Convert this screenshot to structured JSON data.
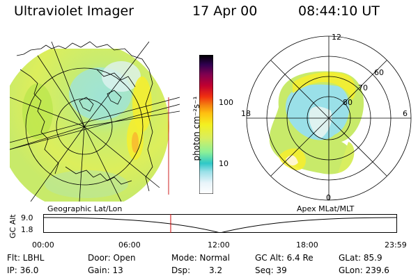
{
  "header": {
    "instrument": "Ultraviolet Imager",
    "date": "17 Apr 00",
    "time": "08:44:10 UT"
  },
  "colorbar": {
    "unit_label": "photon cm⁻²s⁻¹",
    "tick_100": "100",
    "tick_10": "10",
    "colors": [
      "#e8f4fa",
      "#9ae0e8",
      "#2ec8c8",
      "#8cf098",
      "#d8ee60",
      "#f4f020",
      "#ffc010",
      "#f48010",
      "#f03010",
      "#c00030",
      "#800050",
      "#300050",
      "#000000"
    ]
  },
  "left_map": {
    "caption": "Geographic Lat/Lon"
  },
  "right_map": {
    "caption": "Apex MLat/MLT",
    "mlt_labels": {
      "top": "12",
      "bottom": "0",
      "left": "18",
      "right": "6"
    },
    "lat_labels": [
      "60",
      "70",
      "80"
    ]
  },
  "timeline": {
    "axis_label": "GC Alt",
    "y_ticks": [
      "9.0",
      "1.8"
    ],
    "x_ticks": [
      "00:00",
      "06:00",
      "12:00",
      "18:00",
      "23:59"
    ],
    "marker_color": "#cc0000"
  },
  "status": {
    "row1": {
      "filter": "Flt: LBHL",
      "door": "Door: Open",
      "mode": "Mode: Normal",
      "gc_alt": "GC Alt: 6.4 Re",
      "glat": "GLat: 85.9"
    },
    "row2": {
      "ip": "IP: 36.0",
      "gain": "Gain: 13",
      "dsp_label": "Dsp:",
      "dsp_value": "3.2",
      "seq": "Seq: 39",
      "glon": "GLon: 239.6"
    }
  }
}
